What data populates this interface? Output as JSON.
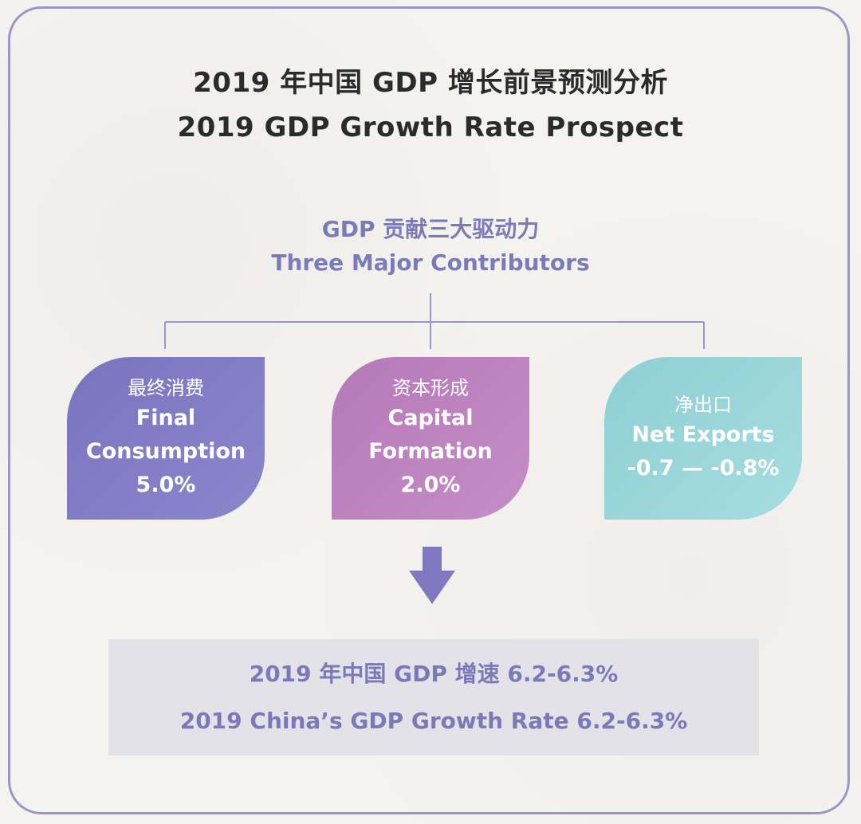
{
  "title": {
    "zh": "2019 年中国 GDP 增长前景预测分析",
    "en": "2019 GDP Growth Rate Prospect"
  },
  "contributors": {
    "zh": "GDP 贡献三大驱动力",
    "en": "Three Major Contributors"
  },
  "boxes": [
    {
      "zh": "最终消费",
      "en_line1": "Final",
      "en_line2": "Consumption",
      "value": "5.0%",
      "color": "#7f7ac4"
    },
    {
      "zh": "资本形成",
      "en_line1": "Capital",
      "en_line2": "Formation",
      "value": "2.0%",
      "color": "#bd82bf"
    },
    {
      "zh": "净出口",
      "en_line1": "Net Exports",
      "value": "-0.7 — -0.8%",
      "color": "#98d5d9"
    }
  ],
  "result": {
    "zh": "2019 年中国 GDP 增速 6.2-6.3%",
    "en": "2019 China’s GDP Growth Rate 6.2-6.3%"
  },
  "colors": {
    "frame": "#9a97c8",
    "accent_text": "#7c7bb9",
    "title_text": "#2b2b2b",
    "arrow": "#8079c2",
    "result_bg": "#e3e2e8"
  },
  "icons": {
    "arrow": "arrow-down-icon"
  }
}
